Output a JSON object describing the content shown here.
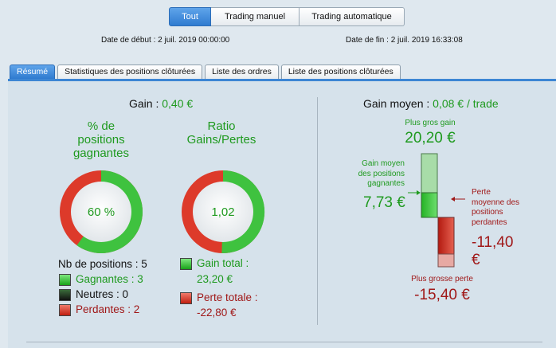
{
  "filters": {
    "all_label": "Tout",
    "manual_label": "Trading manuel",
    "auto_label": "Trading automatique"
  },
  "dates": {
    "start": "Date de début : 2 juil. 2019 00:00:00",
    "end": "Date de fin : 2 juil. 2019 16:33:08"
  },
  "tabs": [
    {
      "label": "Résumé",
      "active": true
    },
    {
      "label": "Statistiques des positions clôturées",
      "active": false
    },
    {
      "label": "Liste des ordres",
      "active": false
    },
    {
      "label": "Liste des positions clôturées",
      "active": false
    }
  ],
  "summary": {
    "gain_label": "Gain : ",
    "gain_value": "0,40 €",
    "win_pct_title_1": "% de",
    "win_pct_title_2": "positions",
    "win_pct_title_3": "gagnantes",
    "win_pct_value": "60 %",
    "win_fraction": 0.6,
    "ratio_title_1": "Ratio",
    "ratio_title_2": "Gains/Pertes",
    "ratio_value": "1,02",
    "ratio_fraction": 0.505,
    "positions_label": "Nb de positions : 5",
    "winners_label": "Gagnantes : 3",
    "neutral_label": "Neutres : 0",
    "losers_label": "Perdantes : 2",
    "total_gain_label": "Gain total :",
    "total_gain_value": "23,20 €",
    "total_loss_label": "Perte totale :",
    "total_loss_value": "-22,80 €"
  },
  "average": {
    "label": "Gain moyen : ",
    "value": "0,08 € / trade",
    "best_label": "Plus gros gain",
    "best_value": "20,20 €",
    "avg_win_label_1": "Gain moyen",
    "avg_win_label_2": "des positions",
    "avg_win_label_3": "gagnantes",
    "avg_win_value": "7,73 €",
    "avg_loss_label_1": "Perte",
    "avg_loss_label_2": "moyenne des",
    "avg_loss_label_3": "positions",
    "avg_loss_label_4": "perdantes",
    "avg_loss_value_1": "-11,40",
    "avg_loss_value_2": "€",
    "worst_label": "Plus grosse perte",
    "worst_value": "-15,40 €"
  },
  "colors": {
    "accent": "#2f7bd0",
    "green": "#1f9a1f",
    "red": "#a01818"
  }
}
